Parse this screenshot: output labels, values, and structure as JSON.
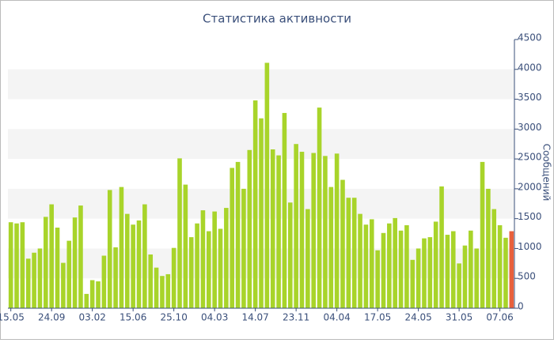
{
  "chart_data": {
    "type": "bar",
    "title": "Статистика активности",
    "y_label": "Сообщений",
    "categories": [
      "15.05",
      null,
      null,
      null,
      null,
      null,
      null,
      "24.09",
      null,
      null,
      null,
      null,
      null,
      null,
      "03.02",
      null,
      null,
      null,
      null,
      null,
      null,
      "15.06",
      null,
      null,
      null,
      null,
      null,
      null,
      "25.10",
      null,
      null,
      null,
      null,
      null,
      null,
      "04.03",
      null,
      null,
      null,
      null,
      null,
      null,
      "14.07",
      null,
      null,
      null,
      null,
      null,
      null,
      "23.11",
      null,
      null,
      null,
      null,
      null,
      null,
      "04.04",
      null,
      null,
      null,
      null,
      null,
      null,
      "17.05",
      null,
      null,
      null,
      null,
      null,
      null,
      "24.05",
      null,
      null,
      null,
      null,
      null,
      null,
      "31.05",
      null,
      null,
      null,
      null,
      null,
      null,
      "07.06",
      null,
      null
    ],
    "values": [
      1440,
      1420,
      1440,
      830,
      930,
      1000,
      1530,
      1740,
      1350,
      760,
      1130,
      1520,
      1720,
      240,
      470,
      450,
      880,
      1980,
      1020,
      2030,
      1580,
      1400,
      1470,
      1740,
      900,
      680,
      540,
      570,
      1010,
      2510,
      2070,
      1190,
      1420,
      1640,
      1290,
      1620,
      1330,
      1680,
      2350,
      2450,
      2000,
      2650,
      3480,
      3180,
      4110,
      2660,
      2560,
      3270,
      1770,
      2750,
      2620,
      1660,
      2600,
      3360,
      2550,
      2030,
      2590,
      2150,
      1850,
      1850,
      1580,
      1400,
      1490,
      970,
      1260,
      1420,
      1510,
      1300,
      1390,
      810,
      1000,
      1170,
      1190,
      1450,
      2040,
      1230,
      1290,
      750,
      1050,
      1300,
      1000,
      2450,
      2000,
      1660,
      1390,
      1180,
      1290
    ],
    "color": "#a8d42a",
    "last_color": "#e8603c",
    "ylim": [
      0,
      4500
    ],
    "yticks": [
      0,
      500,
      1000,
      1500,
      2000,
      2500,
      3000,
      3500,
      4000,
      4500
    ],
    "banded_grid": true
  }
}
